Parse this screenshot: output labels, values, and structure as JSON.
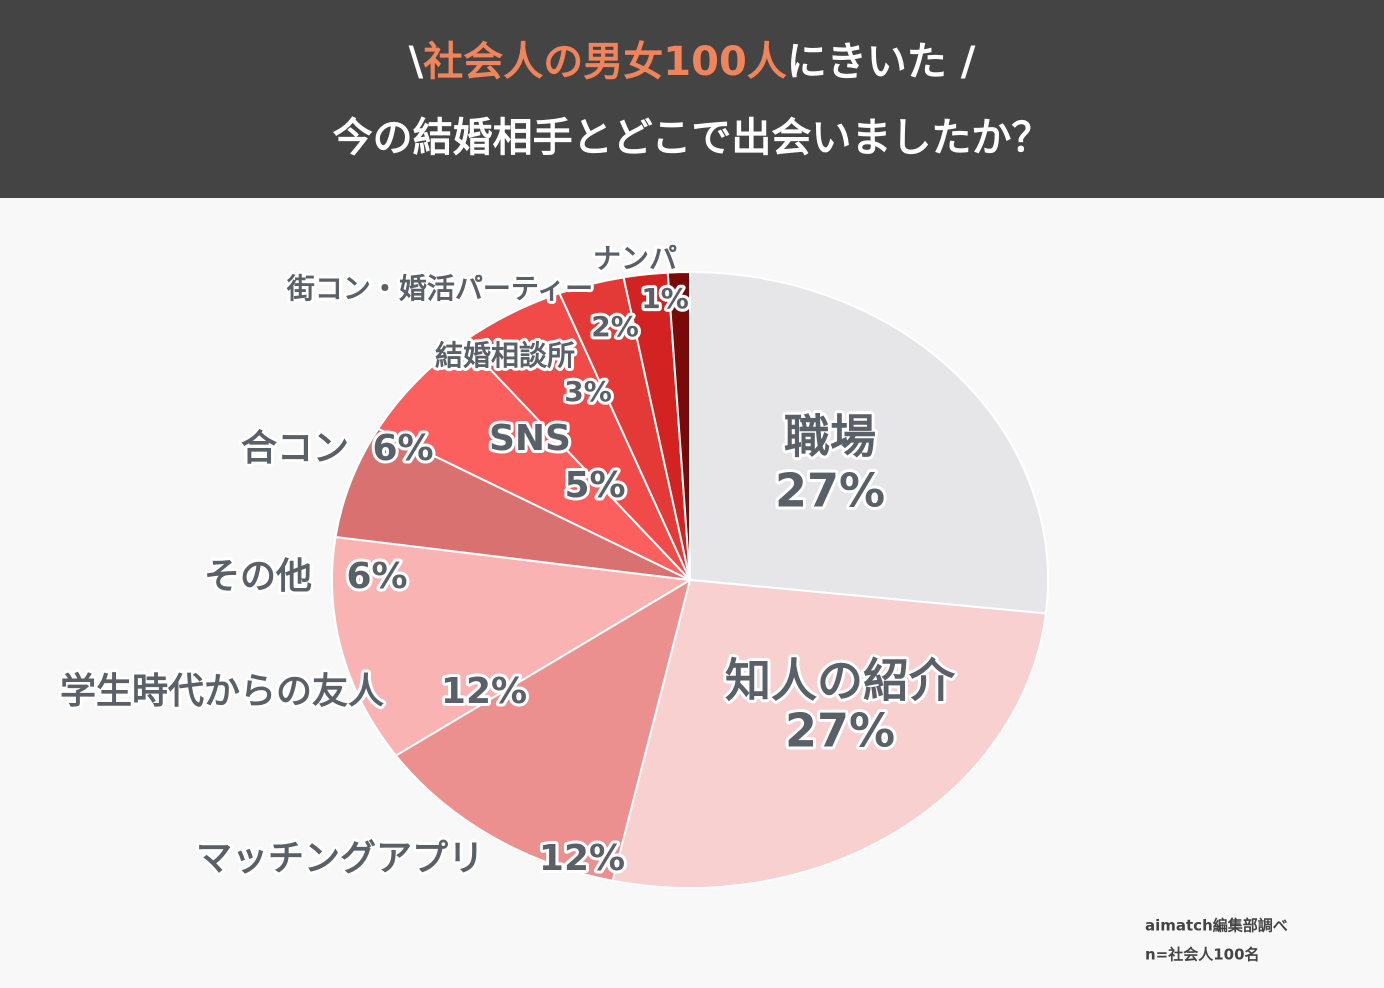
{
  "chart_data": {
    "type": "pie",
    "title": {
      "before": "\\",
      "highlight": "社会人の男女100人",
      "after": "にきいた /"
    },
    "subtitle": "今の結婚相手とどこで出会いましたか？",
    "categories": [
      "職場",
      "知人の紹介",
      "マッチングアプリ",
      "学生時代からの友人",
      "その他",
      "合コン",
      "SNS",
      "結婚相談所",
      "街コン・婚活パーティー",
      "ナンパ"
    ],
    "values": [
      27,
      27,
      12,
      12,
      6,
      6,
      5,
      3,
      2,
      1
    ],
    "value_labels": [
      "27%",
      "27%",
      "12%",
      "12%",
      "6%",
      "6%",
      "5%",
      "3%",
      "2%",
      "1%"
    ],
    "colors": [
      "#e6e6e8",
      "#f7d0cf",
      "#ec8f8f",
      "#f9b3b2",
      "#d97170",
      "#fb5f5e",
      "#f04a49",
      "#e33a38",
      "#d32222",
      "#7a0a0a"
    ],
    "source": "aimatch編集部調べ",
    "note": "n=社会人100名"
  }
}
